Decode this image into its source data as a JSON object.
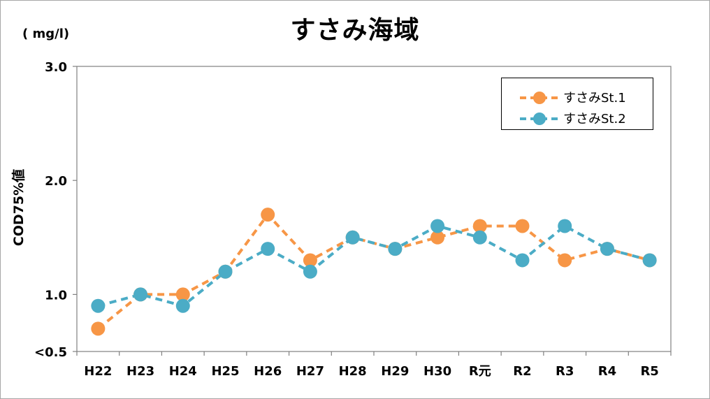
{
  "unit_label": "( mg/l)",
  "colors": {
    "st1": "#F79646",
    "st2": "#4BACC6",
    "axis": "#808080"
  },
  "chart_data": {
    "type": "line",
    "title": "すさみ海域",
    "xlabel": "",
    "ylabel": "COD75%値",
    "categories": [
      "H22",
      "H23",
      "H24",
      "H25",
      "H26",
      "H27",
      "H28",
      "H29",
      "H30",
      "R元",
      "R2",
      "R3",
      "R4",
      "R5"
    ],
    "ylim": [
      0.5,
      3.0
    ],
    "yticks": [
      {
        "value": 0.5,
        "label": "<0.5"
      },
      {
        "value": 1.0,
        "label": "1.0"
      },
      {
        "value": 2.0,
        "label": "2.0"
      },
      {
        "value": 3.0,
        "label": "3.0"
      }
    ],
    "grid": false,
    "legend_position": "top-right",
    "series": [
      {
        "name": "すさみSt.1",
        "color": "#F79646",
        "values": [
          0.7,
          1.0,
          1.0,
          1.2,
          1.7,
          1.3,
          1.5,
          1.4,
          1.5,
          1.6,
          1.6,
          1.3,
          1.4,
          1.3
        ]
      },
      {
        "name": "すさみSt.2",
        "color": "#4BACC6",
        "values": [
          0.9,
          1.0,
          0.9,
          1.2,
          1.4,
          1.2,
          1.5,
          1.4,
          1.6,
          1.5,
          1.3,
          1.6,
          1.4,
          1.3
        ]
      }
    ]
  }
}
